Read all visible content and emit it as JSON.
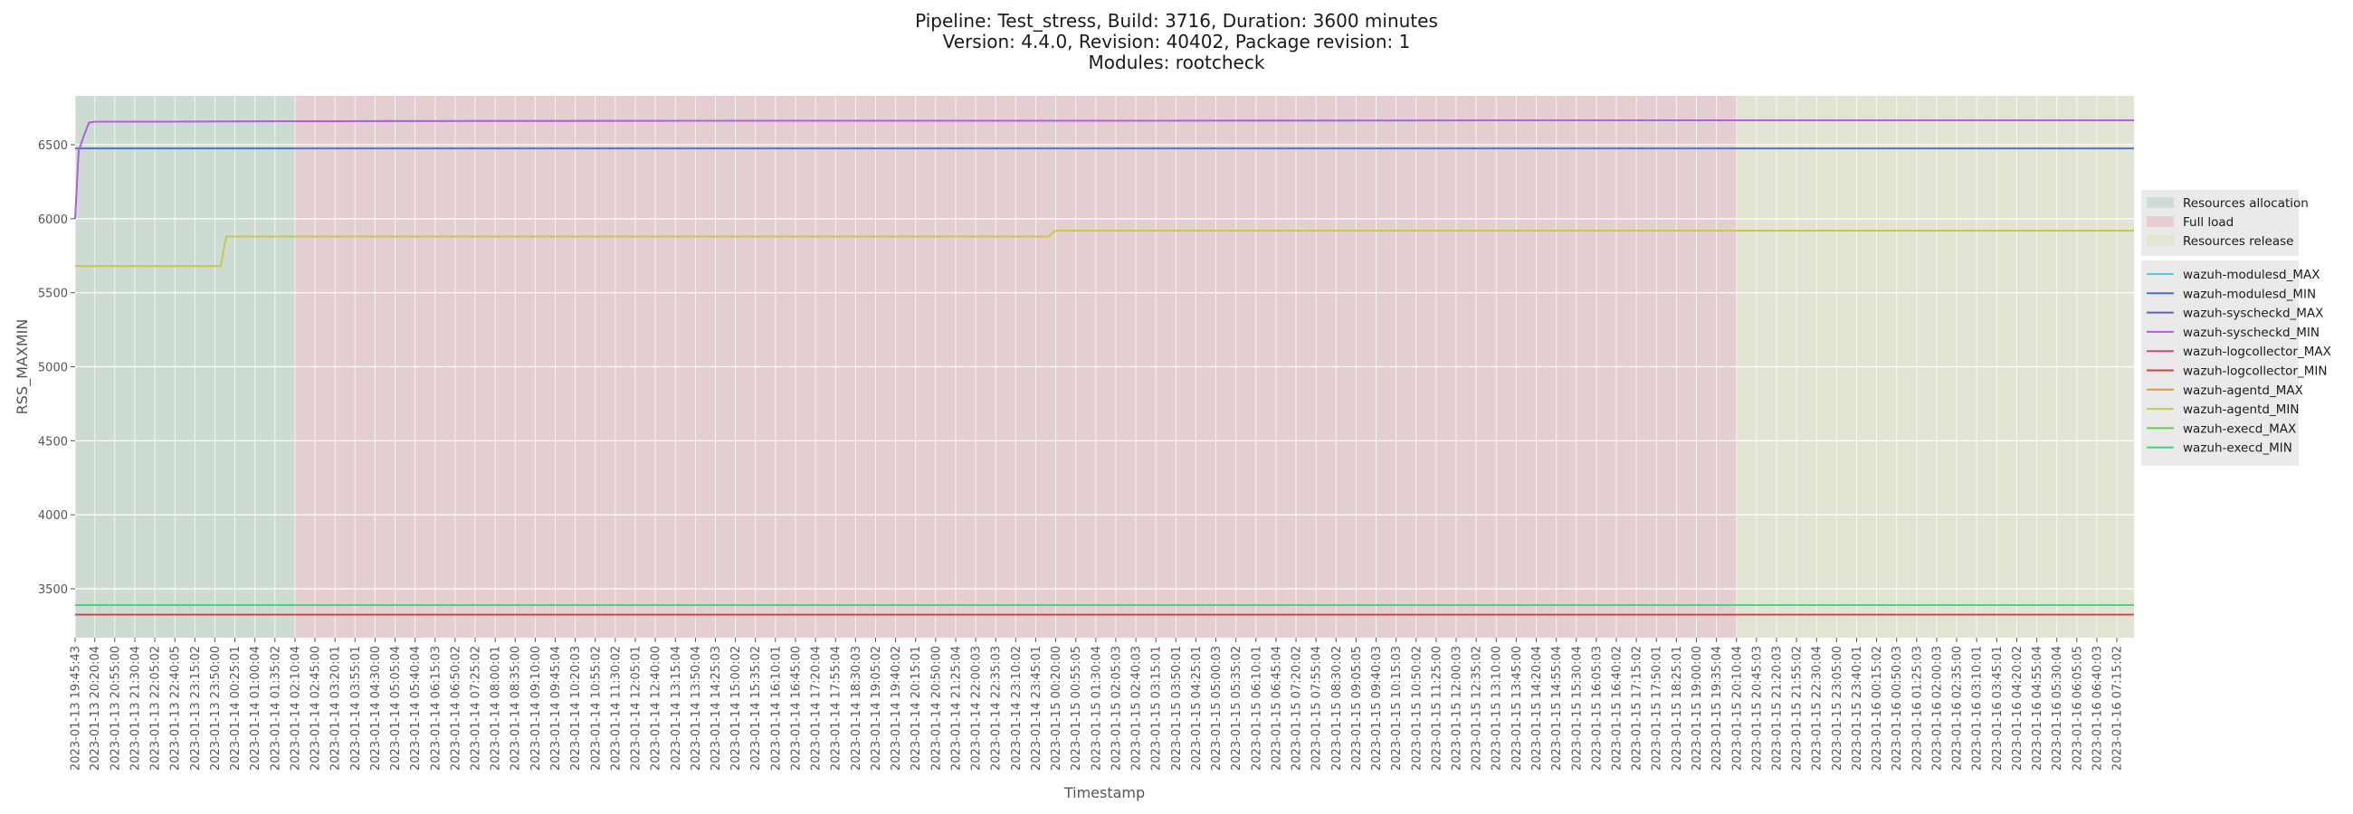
{
  "title_lines": [
    "Pipeline: Test_stress, Build: 3716, Duration: 3600 minutes",
    "Version: 4.4.0, Revision: 40402, Package revision: 1",
    "Modules: rootcheck"
  ],
  "chart_data": {
    "type": "line",
    "xlabel": "Timestamp",
    "ylabel": "RSS_MAXMIN",
    "ylim": [
      3170,
      6830
    ],
    "yticks": [
      3500,
      4000,
      4500,
      5000,
      5500,
      6000,
      6500
    ],
    "grid": true,
    "legend_placement": "right",
    "x": [
      "2023-01-13 19:45:43",
      "2023-01-13 20:20:04",
      "2023-01-13 20:55:00",
      "2023-01-13 21:30:04",
      "2023-01-13 22:05:02",
      "2023-01-13 22:40:05",
      "2023-01-13 23:15:02",
      "2023-01-13 23:50:00",
      "2023-01-14 00:25:01",
      "2023-01-14 01:00:04",
      "2023-01-14 01:35:02",
      "2023-01-14 02:10:04",
      "2023-01-14 02:45:00",
      "2023-01-14 03:20:01",
      "2023-01-14 03:55:01",
      "2023-01-14 04:30:00",
      "2023-01-14 05:05:04",
      "2023-01-14 05:40:04",
      "2023-01-14 06:15:03",
      "2023-01-14 06:50:02",
      "2023-01-14 07:25:02",
      "2023-01-14 08:00:01",
      "2023-01-14 08:35:00",
      "2023-01-14 09:10:00",
      "2023-01-14 09:45:04",
      "2023-01-14 10:20:03",
      "2023-01-14 10:55:02",
      "2023-01-14 11:30:02",
      "2023-01-14 12:05:01",
      "2023-01-14 12:40:00",
      "2023-01-14 13:15:04",
      "2023-01-14 13:50:04",
      "2023-01-14 14:25:03",
      "2023-01-14 15:00:02",
      "2023-01-14 15:35:02",
      "2023-01-14 16:10:01",
      "2023-01-14 16:45:00",
      "2023-01-14 17:20:04",
      "2023-01-14 17:55:04",
      "2023-01-14 18:30:03",
      "2023-01-14 19:05:02",
      "2023-01-14 19:40:02",
      "2023-01-14 20:15:01",
      "2023-01-14 20:50:00",
      "2023-01-14 21:25:04",
      "2023-01-14 22:00:03",
      "2023-01-14 22:35:03",
      "2023-01-14 23:10:02",
      "2023-01-14 23:45:01",
      "2023-01-15 00:20:00",
      "2023-01-15 00:55:05",
      "2023-01-15 01:30:04",
      "2023-01-15 02:05:03",
      "2023-01-15 02:40:03",
      "2023-01-15 03:15:01",
      "2023-01-15 03:50:01",
      "2023-01-15 04:25:01",
      "2023-01-15 05:00:03",
      "2023-01-15 05:35:02",
      "2023-01-15 06:10:01",
      "2023-01-15 06:45:04",
      "2023-01-15 07:20:02",
      "2023-01-15 07:55:04",
      "2023-01-15 08:30:02",
      "2023-01-15 09:05:05",
      "2023-01-15 09:40:03",
      "2023-01-15 10:15:03",
      "2023-01-15 10:50:02",
      "2023-01-15 11:25:00",
      "2023-01-15 12:00:03",
      "2023-01-15 12:35:02",
      "2023-01-15 13:10:00",
      "2023-01-15 13:45:00",
      "2023-01-15 14:20:04",
      "2023-01-15 14:55:04",
      "2023-01-15 15:30:04",
      "2023-01-15 16:05:03",
      "2023-01-15 16:40:02",
      "2023-01-15 17:15:02",
      "2023-01-15 17:50:01",
      "2023-01-15 18:25:01",
      "2023-01-15 19:00:00",
      "2023-01-15 19:35:04",
      "2023-01-15 20:10:04",
      "2023-01-15 20:45:03",
      "2023-01-15 21:20:03",
      "2023-01-15 21:55:02",
      "2023-01-15 22:30:04",
      "2023-01-15 23:05:00",
      "2023-01-15 23:40:01",
      "2023-01-16 00:15:02",
      "2023-01-16 00:50:03",
      "2023-01-16 01:25:03",
      "2023-01-16 02:00:03",
      "2023-01-16 02:35:00",
      "2023-01-16 03:10:01",
      "2023-01-16 03:45:01",
      "2023-01-16 04:20:02",
      "2023-01-16 04:55:04",
      "2023-01-16 05:30:04",
      "2023-01-16 06:05:05",
      "2023-01-16 06:40:03",
      "2023-01-16 07:15:02"
    ],
    "phases": [
      {
        "name": "Resources allocation",
        "start": "2023-01-13 19:45:43",
        "end": "2023-01-14 02:10:04",
        "color": "#b9d3c4"
      },
      {
        "name": "Full load",
        "start": "2023-01-14 02:10:04",
        "end": "2023-01-15 20:10:04",
        "color": "#e5bcc0"
      },
      {
        "name": "Resources release",
        "start": "2023-01-15 20:10:04",
        "end": "2023-01-16 07:45:00",
        "color": "#dfe3c2"
      }
    ],
    "x_end": "2023-01-16 07:45:00",
    "series": [
      {
        "name": "wazuh-modulesd_MAX",
        "color": "#5cc8d8",
        "points": [
          [
            "2023-01-13 19:45:43",
            6475
          ],
          [
            "2023-01-16 07:45:00",
            6475
          ]
        ]
      },
      {
        "name": "wazuh-modulesd_MIN",
        "color": "#4a6ed0",
        "points": [
          [
            "2023-01-13 19:45:43",
            6475
          ],
          [
            "2023-01-16 07:45:00",
            6475
          ]
        ]
      },
      {
        "name": "wazuh-syscheckd_MAX",
        "color": "#6a5acd",
        "points": [
          [
            "2023-01-13 19:45:43",
            6000
          ],
          [
            "2023-01-13 19:52:00",
            6460
          ],
          [
            "2023-01-13 20:00:00",
            6550
          ],
          [
            "2023-01-13 20:10:00",
            6650
          ],
          [
            "2023-01-13 20:20:04",
            6655
          ],
          [
            "2023-01-14 05:05:04",
            6660
          ],
          [
            "2023-01-15 20:45:03",
            6665
          ],
          [
            "2023-01-16 07:45:00",
            6665
          ]
        ]
      },
      {
        "name": "wazuh-syscheckd_MIN",
        "color": "#b45ee0",
        "points": [
          [
            "2023-01-13 19:45:43",
            6000
          ],
          [
            "2023-01-13 19:52:00",
            6460
          ],
          [
            "2023-01-13 20:00:00",
            6550
          ],
          [
            "2023-01-13 20:10:00",
            6650
          ],
          [
            "2023-01-13 20:20:04",
            6655
          ],
          [
            "2023-01-14 05:05:04",
            6660
          ],
          [
            "2023-01-15 20:45:03",
            6665
          ],
          [
            "2023-01-16 07:45:00",
            6665
          ]
        ]
      },
      {
        "name": "wazuh-logcollector_MAX",
        "color": "#d0448a",
        "points": [
          [
            "2023-01-13 19:45:43",
            3325
          ],
          [
            "2023-01-16 07:45:00",
            3325
          ]
        ]
      },
      {
        "name": "wazuh-logcollector_MIN",
        "color": "#e03a3a",
        "points": [
          [
            "2023-01-13 19:45:43",
            3325
          ],
          [
            "2023-01-16 07:45:00",
            3325
          ]
        ]
      },
      {
        "name": "wazuh-agentd_MAX",
        "color": "#d99a3a",
        "points": [
          [
            "2023-01-13 19:45:43",
            5680
          ],
          [
            "2023-01-14 00:00:00",
            5680
          ],
          [
            "2023-01-14 00:10:00",
            5880
          ],
          [
            "2023-01-15 00:07:00",
            5880
          ],
          [
            "2023-01-15 00:20:00",
            5920
          ],
          [
            "2023-01-16 07:45:00",
            5920
          ]
        ]
      },
      {
        "name": "wazuh-agentd_MIN",
        "color": "#c8cc4a",
        "points": [
          [
            "2023-01-13 19:45:43",
            5680
          ],
          [
            "2023-01-14 00:00:00",
            5680
          ],
          [
            "2023-01-14 00:10:00",
            5880
          ],
          [
            "2023-01-15 00:07:00",
            5880
          ],
          [
            "2023-01-15 00:20:00",
            5920
          ],
          [
            "2023-01-16 07:45:00",
            5920
          ]
        ]
      },
      {
        "name": "wazuh-execd_MAX",
        "color": "#6ccf3a",
        "points": [
          [
            "2023-01-13 19:45:43",
            3390
          ],
          [
            "2023-01-16 07:45:00",
            3390
          ]
        ]
      },
      {
        "name": "wazuh-execd_MIN",
        "color": "#3ed48a",
        "points": [
          [
            "2023-01-13 19:45:43",
            3390
          ],
          [
            "2023-01-16 07:45:00",
            3390
          ]
        ]
      }
    ]
  }
}
